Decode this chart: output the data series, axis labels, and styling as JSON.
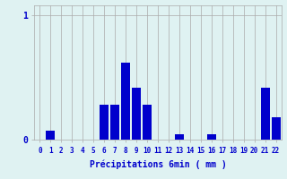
{
  "values": [
    0,
    0.07,
    0,
    0,
    0,
    0,
    0.28,
    0.28,
    0.62,
    0.42,
    0.28,
    0,
    0,
    0.04,
    0,
    0,
    0.04,
    0,
    0,
    0,
    0,
    0.42,
    0.18
  ],
  "xlabel": "Précipitations 6min ( mm )",
  "yticks": [
    0,
    1
  ],
  "ylim": [
    0,
    1.08
  ],
  "xlim": [
    -0.5,
    22.5
  ],
  "bar_color": "#0000cc",
  "background_color": "#dff2f2",
  "grid_color": "#aaaaaa",
  "tick_color": "#0000cc",
  "label_color": "#0000cc",
  "xtick_labels": [
    "0",
    "1",
    "2",
    "3",
    "4",
    "5",
    "6",
    "7",
    "8",
    "9",
    "10",
    "11",
    "12",
    "13",
    "14",
    "15",
    "16",
    "17",
    "18",
    "19",
    "20",
    "21",
    "22"
  ]
}
